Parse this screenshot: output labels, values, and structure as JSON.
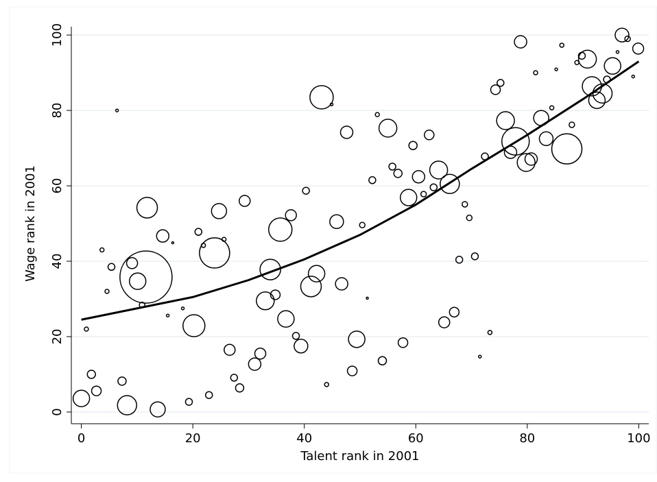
{
  "chart_data": {
    "type": "scatter",
    "xlabel": "Talent rank in 2001",
    "ylabel": "Wage rank in 2001",
    "xlim": [
      -1.8,
      101.8
    ],
    "ylim": [
      -3.1,
      102.2
    ],
    "xticks": [
      0,
      20,
      40,
      60,
      80,
      100
    ],
    "yticks": [
      0,
      20,
      40,
      60,
      80,
      100
    ],
    "grid": true,
    "color": "#000000",
    "x": [
      0,
      0.9,
      1.8,
      2.7,
      3.7,
      4.6,
      5.4,
      6.4,
      7.3,
      8.2,
      9.1,
      10.1,
      10.9,
      11.8,
      11.6,
      13.7,
      14.6,
      15.5,
      16.4,
      18.2,
      19.3,
      20.2,
      21.0,
      21.9,
      22.9,
      23.9,
      24.7,
      25.6,
      26.6,
      27.4,
      28.4,
      29.3,
      31.1,
      32.1,
      33.0,
      33.9,
      34.8,
      35.7,
      36.7,
      37.6,
      38.5,
      39.4,
      40.3,
      41.2,
      42.2,
      43.1,
      44.0,
      44.9,
      45.8,
      46.7,
      47.6,
      48.6,
      49.4,
      50.4,
      51.3,
      52.2,
      53.1,
      54.0,
      55.0,
      55.8,
      56.8,
      57.7,
      58.7,
      59.5,
      60.5,
      61.4,
      62.4,
      63.2,
      64.1,
      65.1,
      66.1,
      66.9,
      67.8,
      68.8,
      69.6,
      70.6,
      71.5,
      72.4,
      73.3,
      74.3,
      75.2,
      76.1,
      77.0,
      77.9,
      78.8,
      79.8,
      80.7,
      81.5,
      82.5,
      83.4,
      84.4,
      85.2,
      86.2,
      87.1,
      88.0,
      88.9,
      89.8,
      90.8,
      91.6,
      92.5,
      93.5,
      94.3,
      95.3,
      96.2,
      97.0,
      98.0,
      99.0,
      99.9
    ],
    "values": [
      3.6,
      22,
      10,
      5.6,
      43,
      32,
      38.5,
      80,
      8.2,
      1.8,
      39.5,
      34.7,
      28.4,
      54.2,
      35.8,
      0.7,
      46.7,
      25.6,
      44.9,
      27.5,
      2.7,
      22.9,
      47.8,
      44.2,
      4.5,
      42.2,
      53.3,
      45.8,
      16.5,
      9.1,
      6.4,
      56,
      12.7,
      15.5,
      29.5,
      37.8,
      31.1,
      48.4,
      24.7,
      52.2,
      20.2,
      17.5,
      58.7,
      33.3,
      36.7,
      83.5,
      7.3,
      81.6,
      50.5,
      34,
      74.2,
      10.9,
      19.3,
      49.6,
      30.2,
      61.5,
      78.9,
      13.6,
      75.3,
      65.1,
      63.3,
      18.4,
      56.9,
      70.7,
      62.4,
      57.8,
      73.5,
      59.6,
      64.2,
      23.8,
      60.5,
      26.5,
      40.4,
      55.1,
      51.5,
      41.3,
      14.7,
      67.8,
      21.1,
      85.5,
      87.3,
      77.3,
      68.9,
      71.8,
      98.2,
      66.2,
      67.1,
      90,
      78,
      72.5,
      80.7,
      90.9,
      97.3,
      69.8,
      76.2,
      92.7,
      94.5,
      93.6,
      86.4,
      82.7,
      84.5,
      88.2,
      91.8,
      95.5,
      100,
      99,
      89,
      96.4
    ],
    "sizes": [
      12,
      3,
      6,
      7,
      3,
      3,
      5,
      2,
      6,
      14,
      8,
      12,
      4,
      15,
      38,
      11,
      9,
      2,
      1.5,
      2,
      5,
      16,
      5,
      3,
      5,
      22,
      11,
      3,
      8,
      5,
      6,
      8,
      9,
      8,
      13,
      15,
      7,
      17,
      12,
      8,
      5,
      10,
      5,
      15,
      12,
      17,
      3,
      2,
      10,
      9,
      9,
      7,
      12,
      4,
      1.5,
      5,
      3,
      6,
      13,
      5,
      6,
      7,
      12,
      6,
      9,
      4,
      7,
      5,
      13,
      8,
      14,
      7,
      5,
      4,
      4,
      5,
      2,
      5,
      3,
      7,
      5,
      13,
      9,
      20,
      9,
      13,
      9,
      3,
      11,
      10,
      3,
      2,
      3,
      22,
      4,
      3,
      5,
      13,
      14,
      12,
      14,
      5,
      12,
      2,
      10,
      4,
      2,
      8
    ],
    "fit": {
      "x": [
        0,
        10,
        20,
        30,
        40,
        50,
        60,
        70,
        80,
        90,
        100
      ],
      "values": [
        24.5,
        27.5,
        30.5,
        35,
        40.5,
        47,
        55,
        64.5,
        73.5,
        83,
        93
      ]
    }
  }
}
